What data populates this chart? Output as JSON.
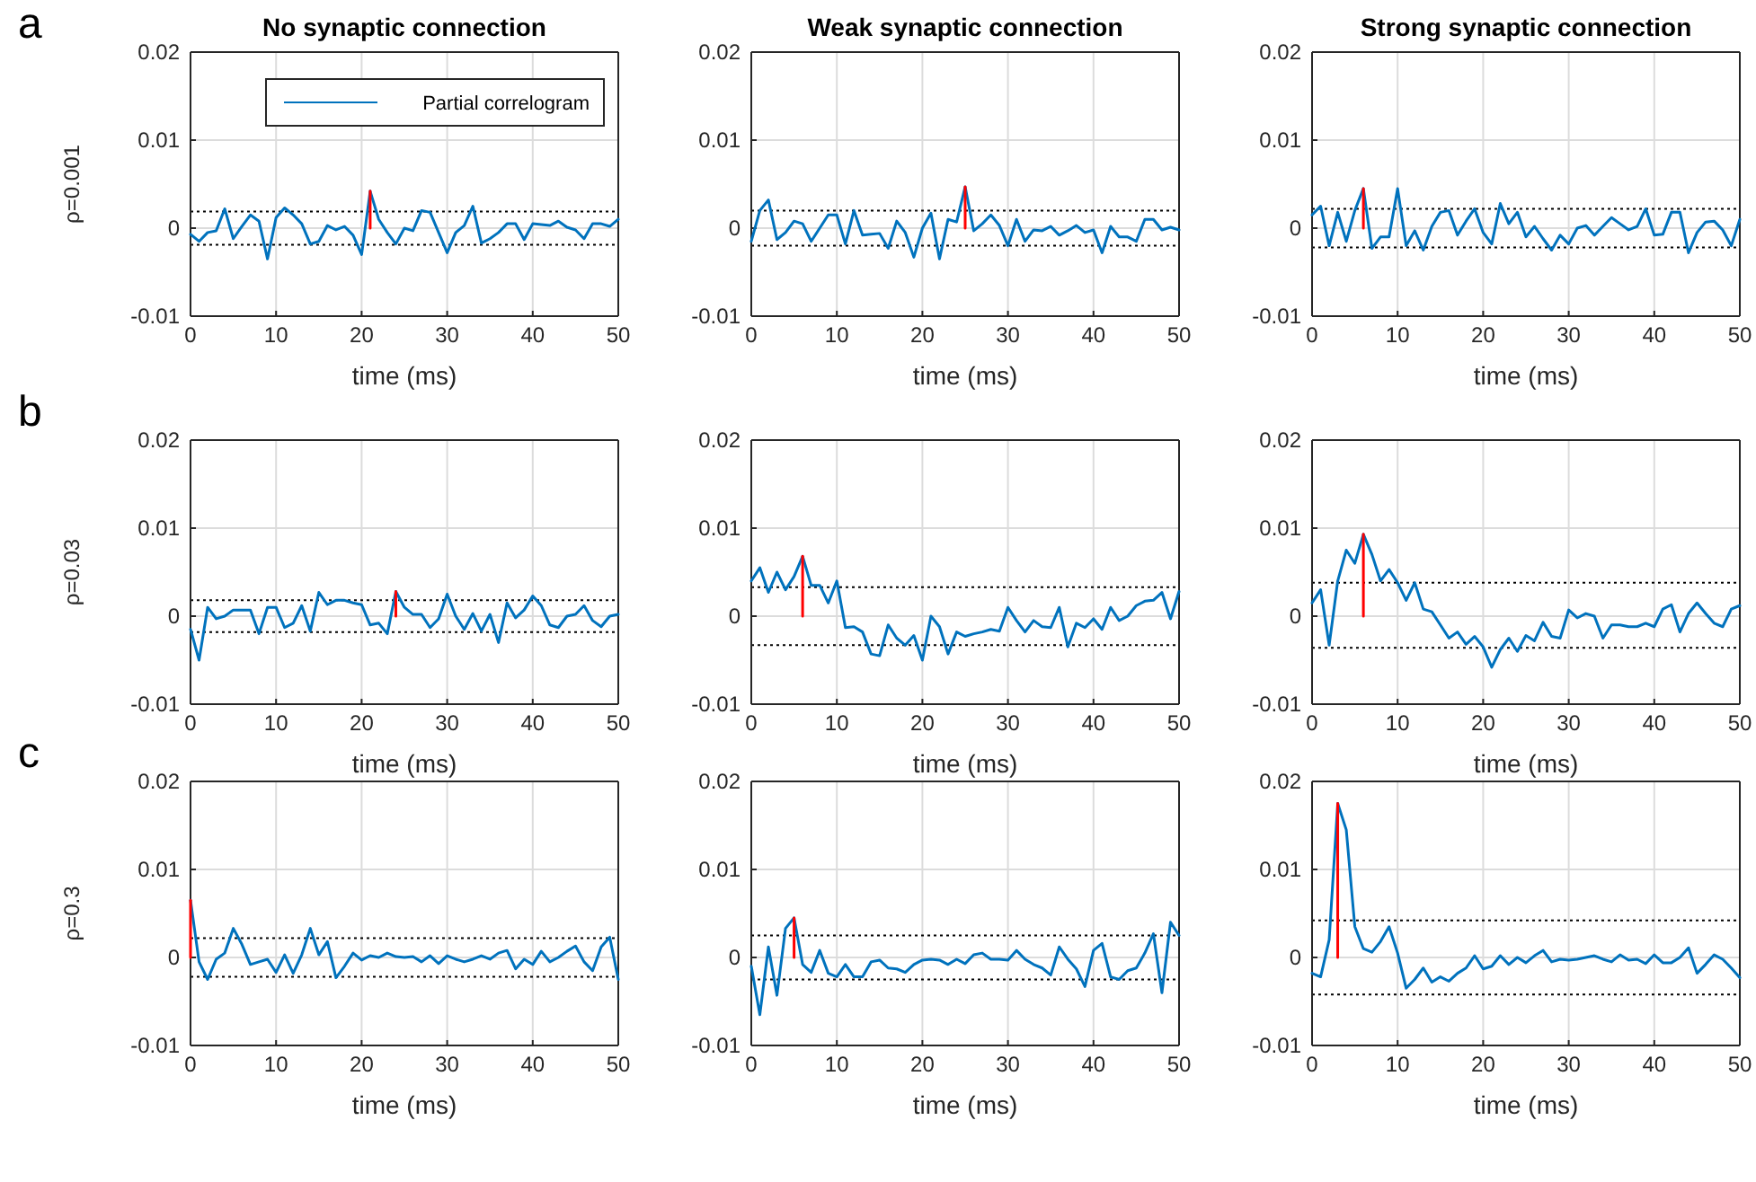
{
  "chart_data": [
    {
      "type": "line",
      "title": "No synaptic connection",
      "ylabel": "ρ=0.001",
      "xlabel": "time (ms)",
      "annotations": [
        "a"
      ],
      "legend": "top",
      "grid": true,
      "xlim": [
        0,
        50
      ],
      "xticks": [
        0,
        10,
        20,
        30,
        40,
        50
      ],
      "ylim": [
        -0.01,
        0.02
      ],
      "yticks": [
        -0.01,
        0,
        0.01,
        0.02
      ],
      "x": [
        0,
        1,
        2,
        3,
        4,
        5,
        6,
        7,
        8,
        9,
        10,
        11,
        12,
        13,
        14,
        15,
        16,
        17,
        18,
        19,
        20,
        21,
        22,
        23,
        24,
        25,
        26,
        27,
        28,
        29,
        30,
        31,
        32,
        33,
        34,
        35,
        36,
        37,
        38,
        39,
        40,
        41,
        42,
        43,
        44,
        45,
        46,
        47,
        48,
        49,
        50
      ],
      "series": [
        {
          "name": "Partial correlogram",
          "color": "#0072bd",
          "values": [
            -0.0007,
            -0.0015,
            -0.0005,
            -0.0003,
            0.0022,
            -0.0012,
            0.0002,
            0.0015,
            0.0008,
            -0.0035,
            0.0012,
            0.0023,
            0.0015,
            0.0005,
            -0.0018,
            -0.0015,
            0.0003,
            -0.0002,
            0.0002,
            -0.0008,
            -0.003,
            0.0042,
            0.001,
            -0.0005,
            -0.0018,
            0,
            -0.0003,
            0.002,
            0.0018,
            -0.0005,
            -0.0028,
            -0.0005,
            0.0003,
            0.0025,
            -0.0017,
            -0.0012,
            -0.0005,
            0.0005,
            0.0005,
            -0.0013,
            0.0005,
            0.0004,
            0.0003,
            0.0008,
            0.0001,
            -0.0002,
            -0.0012,
            0.0005,
            0.0005,
            0.0002,
            0.001
          ]
        },
        {
          "color": "#ff0000",
          "x": [
            21,
            21
          ],
          "values": [
            0,
            0.0042
          ]
        }
      ],
      "ref_lines": [
        {
          "axis": "y",
          "value": 0.0019,
          "color": "#000000",
          "line_style": "dotted"
        },
        {
          "axis": "y",
          "value": -0.0019,
          "color": "#000000",
          "line_style": "dotted"
        }
      ]
    },
    {
      "type": "line",
      "title": "Weak synaptic connection",
      "xlabel": "time (ms)",
      "grid": true,
      "xlim": [
        0,
        50
      ],
      "xticks": [
        0,
        10,
        20,
        30,
        40,
        50
      ],
      "ylim": [
        -0.01,
        0.02
      ],
      "yticks": [
        -0.01,
        0,
        0.01,
        0.02
      ],
      "x": [
        0,
        1,
        2,
        3,
        4,
        5,
        6,
        7,
        8,
        9,
        10,
        11,
        12,
        13,
        14,
        15,
        16,
        17,
        18,
        19,
        20,
        21,
        22,
        23,
        24,
        25,
        26,
        27,
        28,
        29,
        30,
        31,
        32,
        33,
        34,
        35,
        36,
        37,
        38,
        39,
        40,
        41,
        42,
        43,
        44,
        45,
        46,
        47,
        48,
        49,
        50
      ],
      "series": [
        {
          "color": "#0072bd",
          "values": [
            -0.0015,
            0.002,
            0.0032,
            -0.0013,
            -0.0005,
            0.0008,
            0.0005,
            -0.0015,
            0,
            0.0015,
            0.0015,
            -0.0018,
            0.002,
            -0.0008,
            -0.0007,
            -0.0006,
            -0.0023,
            0.0008,
            -0.0005,
            -0.0033,
            0,
            0.0017,
            -0.0035,
            0.001,
            0.0007,
            0.0047,
            -0.0003,
            0.0005,
            0.0015,
            0.0003,
            -0.002,
            0.001,
            -0.0015,
            -0.0002,
            -0.0003,
            0.0002,
            -0.0008,
            -0.0003,
            0.0003,
            -0.0005,
            -0.0002,
            -0.0028,
            0.0002,
            -0.001,
            -0.001,
            -0.0015,
            0.001,
            0.001,
            -0.0002,
            0.0001,
            -0.0002
          ]
        },
        {
          "color": "#ff0000",
          "x": [
            25,
            25
          ],
          "values": [
            0,
            0.0047
          ]
        }
      ],
      "ref_lines": [
        {
          "axis": "y",
          "value": 0.002,
          "color": "#000000",
          "line_style": "dotted"
        },
        {
          "axis": "y",
          "value": -0.002,
          "color": "#000000",
          "line_style": "dotted"
        }
      ]
    },
    {
      "type": "line",
      "title": "Strong synaptic connection",
      "xlabel": "time (ms)",
      "grid": true,
      "xlim": [
        0,
        50
      ],
      "xticks": [
        0,
        10,
        20,
        30,
        40,
        50
      ],
      "ylim": [
        -0.01,
        0.02
      ],
      "yticks": [
        -0.01,
        0,
        0.01,
        0.02
      ],
      "x": [
        0,
        1,
        2,
        3,
        4,
        5,
        6,
        7,
        8,
        9,
        10,
        11,
        12,
        13,
        14,
        15,
        16,
        17,
        18,
        19,
        20,
        21,
        22,
        23,
        24,
        25,
        26,
        27,
        28,
        29,
        30,
        31,
        32,
        33,
        34,
        35,
        36,
        37,
        38,
        39,
        40,
        41,
        42,
        43,
        44,
        45,
        46,
        47,
        48,
        49,
        50
      ],
      "series": [
        {
          "color": "#0072bd",
          "values": [
            0.0015,
            0.0025,
            -0.002,
            0.0018,
            -0.0015,
            0.002,
            0.0045,
            -0.0023,
            -0.001,
            -0.001,
            0.0045,
            -0.002,
            -0.0003,
            -0.0025,
            0.0002,
            0.0018,
            0.002,
            -0.0008,
            0.0008,
            0.0022,
            -0.0005,
            -0.0018,
            0.0028,
            0.0005,
            0.0018,
            -0.001,
            0.0002,
            -0.0012,
            -0.0025,
            -0.0008,
            -0.0018,
            0,
            0.0003,
            -0.0008,
            0.0002,
            0.0012,
            0.0005,
            -0.0002,
            0.0002,
            0.0022,
            -0.0008,
            -0.0007,
            0.0018,
            0.0018,
            -0.0028,
            -0.0005,
            0.0007,
            0.0008,
            -0.0002,
            -0.002,
            0.001
          ]
        },
        {
          "color": "#ff0000",
          "x": [
            6,
            6
          ],
          "values": [
            0,
            0.0045
          ]
        }
      ],
      "ref_lines": [
        {
          "axis": "y",
          "value": 0.0022,
          "color": "#000000",
          "line_style": "dotted"
        },
        {
          "axis": "y",
          "value": -0.0022,
          "color": "#000000",
          "line_style": "dotted"
        }
      ]
    },
    {
      "type": "line",
      "ylabel": "ρ=0.03",
      "xlabel": "time (ms)",
      "annotations": [
        "b"
      ],
      "grid": true,
      "xlim": [
        0,
        50
      ],
      "xticks": [
        0,
        10,
        20,
        30,
        40,
        50
      ],
      "ylim": [
        -0.01,
        0.02
      ],
      "yticks": [
        -0.01,
        0,
        0.01,
        0.02
      ],
      "x": [
        0,
        1,
        2,
        3,
        4,
        5,
        6,
        7,
        8,
        9,
        10,
        11,
        12,
        13,
        14,
        15,
        16,
        17,
        18,
        19,
        20,
        21,
        22,
        23,
        24,
        25,
        26,
        27,
        28,
        29,
        30,
        31,
        32,
        33,
        34,
        35,
        36,
        37,
        38,
        39,
        40,
        41,
        42,
        43,
        44,
        45,
        46,
        47,
        48,
        49,
        50
      ],
      "series": [
        {
          "color": "#0072bd",
          "values": [
            -0.0015,
            -0.005,
            0.001,
            -0.0003,
            0,
            0.0007,
            0.0007,
            0.0007,
            -0.002,
            0.001,
            0.001,
            -0.0013,
            -0.0008,
            0.0012,
            -0.0017,
            0.0027,
            0.0013,
            0.0018,
            0.0018,
            0.0015,
            0.0013,
            -0.001,
            -0.0008,
            -0.002,
            0.0028,
            0.001,
            0.0002,
            0.0002,
            -0.0013,
            -0.0003,
            0.0025,
            0,
            -0.0015,
            0.0003,
            -0.0017,
            0.0002,
            -0.003,
            0.0015,
            -0.0002,
            0.0007,
            0.0023,
            0.0012,
            -0.001,
            -0.0013,
            0,
            0.0002,
            0.0012,
            -0.0005,
            -0.0012,
            0,
            0.0002
          ]
        },
        {
          "color": "#ff0000",
          "x": [
            24,
            24
          ],
          "values": [
            0,
            0.0028
          ]
        }
      ],
      "ref_lines": [
        {
          "axis": "y",
          "value": 0.0018,
          "color": "#000000",
          "line_style": "dotted"
        },
        {
          "axis": "y",
          "value": -0.0018,
          "color": "#000000",
          "line_style": "dotted"
        }
      ]
    },
    {
      "type": "line",
      "xlabel": "time (ms)",
      "grid": true,
      "xlim": [
        0,
        50
      ],
      "xticks": [
        0,
        10,
        20,
        30,
        40,
        50
      ],
      "ylim": [
        -0.01,
        0.02
      ],
      "yticks": [
        -0.01,
        0,
        0.01,
        0.02
      ],
      "x": [
        0,
        1,
        2,
        3,
        4,
        5,
        6,
        7,
        8,
        9,
        10,
        11,
        12,
        13,
        14,
        15,
        16,
        17,
        18,
        19,
        20,
        21,
        22,
        23,
        24,
        25,
        26,
        27,
        28,
        29,
        30,
        31,
        32,
        33,
        34,
        35,
        36,
        37,
        38,
        39,
        40,
        41,
        42,
        43,
        44,
        45,
        46,
        47,
        48,
        49,
        50
      ],
      "series": [
        {
          "color": "#0072bd",
          "values": [
            0.004,
            0.0055,
            0.0027,
            0.005,
            0.003,
            0.0045,
            0.0068,
            0.0035,
            0.0035,
            0.0015,
            0.004,
            -0.0013,
            -0.0012,
            -0.0018,
            -0.0043,
            -0.0045,
            -0.001,
            -0.0025,
            -0.0033,
            -0.0022,
            -0.005,
            0,
            -0.0012,
            -0.0043,
            -0.0018,
            -0.0023,
            -0.002,
            -0.0018,
            -0.0015,
            -0.0017,
            0.001,
            -0.0005,
            -0.0018,
            -0.0005,
            -0.0012,
            -0.0013,
            0.001,
            -0.0035,
            -0.0008,
            -0.0013,
            -0.0003,
            -0.0015,
            0.001,
            -0.0005,
            0,
            0.0012,
            0.0017,
            0.0018,
            0.0027,
            -0.0003,
            0.0028
          ]
        },
        {
          "color": "#ff0000",
          "x": [
            6,
            6
          ],
          "values": [
            0,
            0.0068
          ]
        }
      ],
      "ref_lines": [
        {
          "axis": "y",
          "value": 0.0033,
          "color": "#000000",
          "line_style": "dotted"
        },
        {
          "axis": "y",
          "value": -0.0033,
          "color": "#000000",
          "line_style": "dotted"
        }
      ]
    },
    {
      "type": "line",
      "xlabel": "time (ms)",
      "grid": true,
      "xlim": [
        0,
        50
      ],
      "xticks": [
        0,
        10,
        20,
        30,
        40,
        50
      ],
      "ylim": [
        -0.01,
        0.02
      ],
      "yticks": [
        -0.01,
        0,
        0.01,
        0.02
      ],
      "x": [
        0,
        1,
        2,
        3,
        4,
        5,
        6,
        7,
        8,
        9,
        10,
        11,
        12,
        13,
        14,
        15,
        16,
        17,
        18,
        19,
        20,
        21,
        22,
        23,
        24,
        25,
        26,
        27,
        28,
        29,
        30,
        31,
        32,
        33,
        34,
        35,
        36,
        37,
        38,
        39,
        40,
        41,
        42,
        43,
        44,
        45,
        46,
        47,
        48,
        49,
        50
      ],
      "series": [
        {
          "color": "#0072bd",
          "values": [
            0.0015,
            0.003,
            -0.0033,
            0.004,
            0.0075,
            0.006,
            0.0093,
            0.007,
            0.004,
            0.0053,
            0.0038,
            0.0018,
            0.0038,
            0.0008,
            0.0005,
            -0.001,
            -0.0025,
            -0.0018,
            -0.0032,
            -0.0023,
            -0.0035,
            -0.0058,
            -0.0038,
            -0.0025,
            -0.004,
            -0.0022,
            -0.0028,
            -0.0007,
            -0.0023,
            -0.0025,
            0.0007,
            -0.0002,
            0.0003,
            0,
            -0.0025,
            -0.001,
            -0.001,
            -0.0012,
            -0.0012,
            -0.0008,
            -0.0012,
            0.0008,
            0.0013,
            -0.0018,
            0.0003,
            0.0015,
            0.0003,
            -0.0008,
            -0.0012,
            0.0008,
            0.0012
          ]
        },
        {
          "color": "#ff0000",
          "x": [
            6,
            6
          ],
          "values": [
            0,
            0.0093
          ]
        }
      ],
      "ref_lines": [
        {
          "axis": "y",
          "value": 0.0038,
          "color": "#000000",
          "line_style": "dotted"
        },
        {
          "axis": "y",
          "value": -0.0036,
          "color": "#000000",
          "line_style": "dotted"
        }
      ]
    },
    {
      "type": "line",
      "ylabel": "ρ=0.3",
      "xlabel": "time (ms)",
      "annotations": [
        "c"
      ],
      "grid": true,
      "xlim": [
        0,
        50
      ],
      "xticks": [
        0,
        10,
        20,
        30,
        40,
        50
      ],
      "ylim": [
        -0.01,
        0.02
      ],
      "yticks": [
        -0.01,
        0,
        0.01,
        0.02
      ],
      "x": [
        0,
        1,
        2,
        3,
        4,
        5,
        6,
        7,
        8,
        9,
        10,
        11,
        12,
        13,
        14,
        15,
        16,
        17,
        18,
        19,
        20,
        21,
        22,
        23,
        24,
        25,
        26,
        27,
        28,
        29,
        30,
        31,
        32,
        33,
        34,
        35,
        36,
        37,
        38,
        39,
        40,
        41,
        42,
        43,
        44,
        45,
        46,
        47,
        48,
        49,
        50
      ],
      "series": [
        {
          "color": "#0072bd",
          "values": [
            0.0065,
            -0.0005,
            -0.0025,
            -0.0002,
            0.0005,
            0.0033,
            0.0015,
            -0.0008,
            -0.0005,
            -0.0002,
            -0.0017,
            0.0003,
            -0.0018,
            0.0003,
            0.0033,
            0.0003,
            0.0018,
            -0.0023,
            -0.001,
            0.0005,
            -0.0003,
            0.0002,
            0,
            0.0005,
            0.0001,
            0,
            0.0001,
            -0.0005,
            0.0002,
            -0.0007,
            0.0002,
            -0.0002,
            -0.0005,
            -0.0002,
            0.0002,
            -0.0002,
            0.0005,
            0.0008,
            -0.0013,
            -0.0002,
            -0.0008,
            0.0007,
            -0.0005,
            0,
            0.0007,
            0.0013,
            -0.0005,
            -0.0015,
            0.0012,
            0.0023,
            -0.0025
          ]
        },
        {
          "color": "#ff0000",
          "x": [
            0,
            0
          ],
          "values": [
            0,
            0.0065
          ]
        }
      ],
      "ref_lines": [
        {
          "axis": "y",
          "value": 0.0022,
          "color": "#000000",
          "line_style": "dotted"
        },
        {
          "axis": "y",
          "value": -0.0022,
          "color": "#000000",
          "line_style": "dotted"
        }
      ]
    },
    {
      "type": "line",
      "xlabel": "time (ms)",
      "grid": true,
      "xlim": [
        0,
        50
      ],
      "xticks": [
        0,
        10,
        20,
        30,
        40,
        50
      ],
      "ylim": [
        -0.01,
        0.02
      ],
      "yticks": [
        -0.01,
        0,
        0.01,
        0.02
      ],
      "x": [
        0,
        1,
        2,
        3,
        4,
        5,
        6,
        7,
        8,
        9,
        10,
        11,
        12,
        13,
        14,
        15,
        16,
        17,
        18,
        19,
        20,
        21,
        22,
        23,
        24,
        25,
        26,
        27,
        28,
        29,
        30,
        31,
        32,
        33,
        34,
        35,
        36,
        37,
        38,
        39,
        40,
        41,
        42,
        43,
        44,
        45,
        46,
        47,
        48,
        49,
        50
      ],
      "series": [
        {
          "color": "#0072bd",
          "values": [
            -0.001,
            -0.0065,
            0.0012,
            -0.0043,
            0.0033,
            0.0045,
            -0.0008,
            -0.0017,
            0.0008,
            -0.0018,
            -0.0022,
            -0.0008,
            -0.0022,
            -0.0022,
            -0.0005,
            -0.0003,
            -0.0012,
            -0.0013,
            -0.0017,
            -0.0008,
            -0.0003,
            -0.0002,
            -0.0003,
            -0.0008,
            -0.0002,
            -0.0007,
            0.0003,
            0.0005,
            -0.0002,
            -0.0002,
            -0.0003,
            0.0008,
            -0.0002,
            -0.0008,
            -0.0012,
            -0.002,
            0.0012,
            -0.0002,
            -0.0013,
            -0.0033,
            0.0008,
            0.0016,
            -0.0022,
            -0.0025,
            -0.0015,
            -0.0012,
            0.0005,
            0.0027,
            -0.004,
            0.004,
            0.0025
          ]
        },
        {
          "color": "#ff0000",
          "x": [
            5,
            5
          ],
          "values": [
            0,
            0.0045
          ]
        }
      ],
      "ref_lines": [
        {
          "axis": "y",
          "value": 0.0025,
          "color": "#000000",
          "line_style": "dotted"
        },
        {
          "axis": "y",
          "value": -0.0025,
          "color": "#000000",
          "line_style": "dotted"
        }
      ]
    },
    {
      "type": "line",
      "xlabel": "time (ms)",
      "grid": true,
      "xlim": [
        0,
        50
      ],
      "xticks": [
        0,
        10,
        20,
        30,
        40,
        50
      ],
      "ylim": [
        -0.01,
        0.02
      ],
      "yticks": [
        -0.01,
        0,
        0.01,
        0.02
      ],
      "x": [
        0,
        1,
        2,
        3,
        4,
        5,
        6,
        7,
        8,
        9,
        10,
        11,
        12,
        13,
        14,
        15,
        16,
        17,
        18,
        19,
        20,
        21,
        22,
        23,
        24,
        25,
        26,
        27,
        28,
        29,
        30,
        31,
        32,
        33,
        34,
        35,
        36,
        37,
        38,
        39,
        40,
        41,
        42,
        43,
        44,
        45,
        46,
        47,
        48,
        49,
        50
      ],
      "series": [
        {
          "color": "#0072bd",
          "values": [
            -0.0018,
            -0.0022,
            0.002,
            0.0175,
            0.0145,
            0.0035,
            0.001,
            0.0006,
            0.0018,
            0.0035,
            0.0005,
            -0.0035,
            -0.0025,
            -0.0012,
            -0.0028,
            -0.0022,
            -0.0027,
            -0.0018,
            -0.0012,
            0.0002,
            -0.0013,
            -0.001,
            0.0002,
            -0.0008,
            0,
            -0.0006,
            0.0002,
            0.0008,
            -0.0005,
            -0.0002,
            -0.0003,
            -0.0002,
            0,
            0.0002,
            -0.0002,
            -0.0005,
            0.0003,
            -0.0003,
            -0.0002,
            -0.0007,
            0.0003,
            -0.0006,
            -0.0006,
            0,
            0.0011,
            -0.0018,
            -0.0008,
            0.0003,
            -0.0002,
            -0.0012,
            -0.0023
          ]
        },
        {
          "color": "#ff0000",
          "x": [
            3,
            3
          ],
          "values": [
            0,
            0.0175
          ]
        }
      ],
      "ref_lines": [
        {
          "axis": "y",
          "value": 0.0042,
          "color": "#000000",
          "line_style": "dotted"
        },
        {
          "axis": "y",
          "value": -0.0042,
          "color": "#000000",
          "line_style": "dotted"
        }
      ]
    }
  ]
}
